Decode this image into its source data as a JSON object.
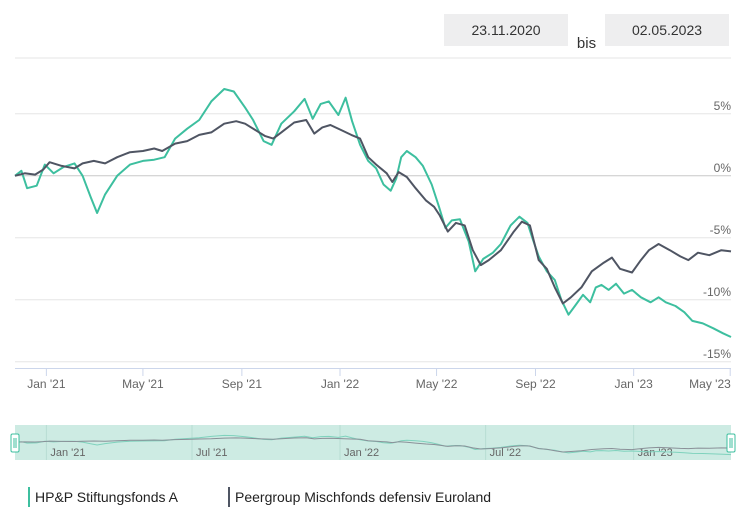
{
  "date_range": {
    "from": "23.11.2020",
    "separator": "bis",
    "to": "02.05.2023"
  },
  "colors": {
    "series_a": "#3dbf9f",
    "series_b": "#4f5563",
    "navigator_bg": "#cdebe3",
    "grid": "#e6e6e6",
    "zero": "#c8c8c8",
    "axis": "#ccd6eb"
  },
  "chart_data": {
    "type": "line",
    "x_range": [
      "2020-11-23",
      "2023-05-02"
    ],
    "ylim": [
      -15.5,
      9.5
    ],
    "y_ticks": [
      {
        "value": 5,
        "label": "5%"
      },
      {
        "value": 0,
        "label": "0%"
      },
      {
        "value": -5,
        "label": "-5%"
      },
      {
        "value": -10,
        "label": "-10%"
      },
      {
        "value": -15,
        "label": "-15%"
      }
    ],
    "x_ticks": [
      {
        "date": "2021-01-01",
        "label": "Jan '21"
      },
      {
        "date": "2021-05-01",
        "label": "May '21"
      },
      {
        "date": "2021-09-01",
        "label": "Sep '21"
      },
      {
        "date": "2022-01-01",
        "label": "Jan '22"
      },
      {
        "date": "2022-05-01",
        "label": "May '22"
      },
      {
        "date": "2022-09-01",
        "label": "Sep '22"
      },
      {
        "date": "2023-01-01",
        "label": "Jan '23"
      },
      {
        "date": "2023-05-01",
        "label": "May '23"
      }
    ],
    "navigator_ticks": [
      {
        "date": "2021-01-01",
        "label": "Jan '21"
      },
      {
        "date": "2021-07-01",
        "label": "Jul '21"
      },
      {
        "date": "2022-01-01",
        "label": "Jan '22"
      },
      {
        "date": "2022-07-01",
        "label": "Jul '22"
      },
      {
        "date": "2023-01-01",
        "label": "Jan '23"
      }
    ],
    "series": [
      {
        "name": "HP&P Stiftungsfonds A",
        "points": [
          [
            "2020-11-23",
            0
          ],
          [
            "2020-12-01",
            0.4
          ],
          [
            "2020-12-08",
            -1.0
          ],
          [
            "2020-12-20",
            -0.8
          ],
          [
            "2020-12-30",
            0.9
          ],
          [
            "2021-01-10",
            0.2
          ],
          [
            "2021-01-22",
            0.7
          ],
          [
            "2021-02-05",
            1.0
          ],
          [
            "2021-02-15",
            0.0
          ],
          [
            "2021-02-25",
            -1.7
          ],
          [
            "2021-03-05",
            -3.0
          ],
          [
            "2021-03-15",
            -1.5
          ],
          [
            "2021-03-30",
            0.0
          ],
          [
            "2021-04-15",
            0.9
          ],
          [
            "2021-05-01",
            1.2
          ],
          [
            "2021-05-15",
            1.3
          ],
          [
            "2021-05-28",
            1.5
          ],
          [
            "2021-06-10",
            3.0
          ],
          [
            "2021-06-25",
            3.8
          ],
          [
            "2021-07-10",
            4.5
          ],
          [
            "2021-07-25",
            6.0
          ],
          [
            "2021-08-10",
            7.0
          ],
          [
            "2021-08-22",
            6.8
          ],
          [
            "2021-09-05",
            5.5
          ],
          [
            "2021-09-15",
            4.5
          ],
          [
            "2021-09-28",
            2.8
          ],
          [
            "2021-10-08",
            2.5
          ],
          [
            "2021-10-20",
            4.2
          ],
          [
            "2021-11-05",
            5.2
          ],
          [
            "2021-11-18",
            6.2
          ],
          [
            "2021-11-28",
            4.6
          ],
          [
            "2021-12-08",
            5.8
          ],
          [
            "2021-12-18",
            6.0
          ],
          [
            "2021-12-30",
            4.9
          ],
          [
            "2022-01-08",
            6.3
          ],
          [
            "2022-01-16",
            4.4
          ],
          [
            "2022-01-26",
            2.5
          ],
          [
            "2022-02-05",
            1.2
          ],
          [
            "2022-02-15",
            0.6
          ],
          [
            "2022-02-24",
            -0.7
          ],
          [
            "2022-03-05",
            -1.2
          ],
          [
            "2022-03-12",
            -0.2
          ],
          [
            "2022-03-18",
            1.5
          ],
          [
            "2022-03-25",
            2.0
          ],
          [
            "2022-04-05",
            1.5
          ],
          [
            "2022-04-14",
            0.8
          ],
          [
            "2022-04-25",
            -0.7
          ],
          [
            "2022-05-04",
            -2.5
          ],
          [
            "2022-05-12",
            -4.2
          ],
          [
            "2022-05-20",
            -3.6
          ],
          [
            "2022-05-30",
            -3.5
          ],
          [
            "2022-06-10",
            -5.3
          ],
          [
            "2022-06-18",
            -7.7
          ],
          [
            "2022-06-28",
            -6.7
          ],
          [
            "2022-07-10",
            -6.2
          ],
          [
            "2022-07-20",
            -5.5
          ],
          [
            "2022-08-01",
            -4.0
          ],
          [
            "2022-08-12",
            -3.3
          ],
          [
            "2022-08-22",
            -3.8
          ],
          [
            "2022-08-28",
            -5.0
          ],
          [
            "2022-09-05",
            -6.5
          ],
          [
            "2022-09-15",
            -7.7
          ],
          [
            "2022-09-25",
            -8.4
          ],
          [
            "2022-10-03",
            -10.0
          ],
          [
            "2022-10-12",
            -11.2
          ],
          [
            "2022-10-20",
            -10.5
          ],
          [
            "2022-10-30",
            -9.6
          ],
          [
            "2022-11-08",
            -10.2
          ],
          [
            "2022-11-15",
            -9.0
          ],
          [
            "2022-11-22",
            -8.8
          ],
          [
            "2022-12-01",
            -9.2
          ],
          [
            "2022-12-10",
            -8.7
          ],
          [
            "2022-12-20",
            -9.5
          ],
          [
            "2022-12-30",
            -9.2
          ],
          [
            "2023-01-10",
            -9.8
          ],
          [
            "2023-01-22",
            -10.2
          ],
          [
            "2023-02-01",
            -9.8
          ],
          [
            "2023-02-10",
            -10.2
          ],
          [
            "2023-02-22",
            -10.5
          ],
          [
            "2023-03-05",
            -11.0
          ],
          [
            "2023-03-15",
            -11.7
          ],
          [
            "2023-03-28",
            -11.9
          ],
          [
            "2023-04-10",
            -12.3
          ],
          [
            "2023-04-22",
            -12.7
          ],
          [
            "2023-05-02",
            -13.0
          ]
        ]
      },
      {
        "name": "Peergroup Mischfonds defensiv Euroland",
        "points": [
          [
            "2020-11-23",
            0
          ],
          [
            "2020-12-05",
            0.2
          ],
          [
            "2020-12-18",
            0.1
          ],
          [
            "2020-12-28",
            0.5
          ],
          [
            "2021-01-05",
            1.1
          ],
          [
            "2021-01-20",
            0.8
          ],
          [
            "2021-02-05",
            0.6
          ],
          [
            "2021-02-15",
            1.0
          ],
          [
            "2021-03-01",
            1.2
          ],
          [
            "2021-03-15",
            1.0
          ],
          [
            "2021-03-30",
            1.5
          ],
          [
            "2021-04-15",
            1.9
          ],
          [
            "2021-05-01",
            2.0
          ],
          [
            "2021-05-15",
            2.2
          ],
          [
            "2021-05-25",
            2.0
          ],
          [
            "2021-06-10",
            2.6
          ],
          [
            "2021-06-25",
            2.8
          ],
          [
            "2021-07-10",
            3.3
          ],
          [
            "2021-07-25",
            3.5
          ],
          [
            "2021-08-10",
            4.2
          ],
          [
            "2021-08-25",
            4.4
          ],
          [
            "2021-09-05",
            4.2
          ],
          [
            "2021-09-20",
            3.6
          ],
          [
            "2021-09-30",
            3.2
          ],
          [
            "2021-10-10",
            3.0
          ],
          [
            "2021-10-20",
            3.5
          ],
          [
            "2021-11-05",
            4.3
          ],
          [
            "2021-11-20",
            4.5
          ],
          [
            "2021-11-30",
            3.4
          ],
          [
            "2021-12-10",
            3.9
          ],
          [
            "2021-12-20",
            4.1
          ],
          [
            "2022-01-02",
            3.7
          ],
          [
            "2022-01-15",
            3.3
          ],
          [
            "2022-01-26",
            3.0
          ],
          [
            "2022-02-05",
            1.5
          ],
          [
            "2022-02-15",
            0.9
          ],
          [
            "2022-02-28",
            0.2
          ],
          [
            "2022-03-07",
            -0.5
          ],
          [
            "2022-03-15",
            0.3
          ],
          [
            "2022-03-25",
            -0.1
          ],
          [
            "2022-04-05",
            -1.0
          ],
          [
            "2022-04-18",
            -2.0
          ],
          [
            "2022-04-28",
            -2.5
          ],
          [
            "2022-05-05",
            -3.2
          ],
          [
            "2022-05-15",
            -4.5
          ],
          [
            "2022-05-25",
            -3.8
          ],
          [
            "2022-06-05",
            -4.0
          ],
          [
            "2022-06-15",
            -6.0
          ],
          [
            "2022-06-25",
            -7.2
          ],
          [
            "2022-07-05",
            -6.8
          ],
          [
            "2022-07-20",
            -6.0
          ],
          [
            "2022-08-05",
            -4.5
          ],
          [
            "2022-08-15",
            -3.7
          ],
          [
            "2022-08-25",
            -4.0
          ],
          [
            "2022-09-05",
            -6.8
          ],
          [
            "2022-09-15",
            -7.5
          ],
          [
            "2022-09-25",
            -9.0
          ],
          [
            "2022-10-05",
            -10.3
          ],
          [
            "2022-10-15",
            -9.8
          ],
          [
            "2022-10-28",
            -9.0
          ],
          [
            "2022-11-10",
            -7.7
          ],
          [
            "2022-11-25",
            -7.0
          ],
          [
            "2022-12-05",
            -6.6
          ],
          [
            "2022-12-15",
            -7.5
          ],
          [
            "2022-12-30",
            -7.8
          ],
          [
            "2023-01-10",
            -6.8
          ],
          [
            "2023-01-20",
            -6.0
          ],
          [
            "2023-02-01",
            -5.5
          ],
          [
            "2023-02-15",
            -6.0
          ],
          [
            "2023-02-28",
            -6.5
          ],
          [
            "2023-03-10",
            -6.8
          ],
          [
            "2023-03-22",
            -6.2
          ],
          [
            "2023-04-05",
            -6.4
          ],
          [
            "2023-04-20",
            -6.0
          ],
          [
            "2023-05-02",
            -6.1
          ]
        ]
      }
    ]
  }
}
